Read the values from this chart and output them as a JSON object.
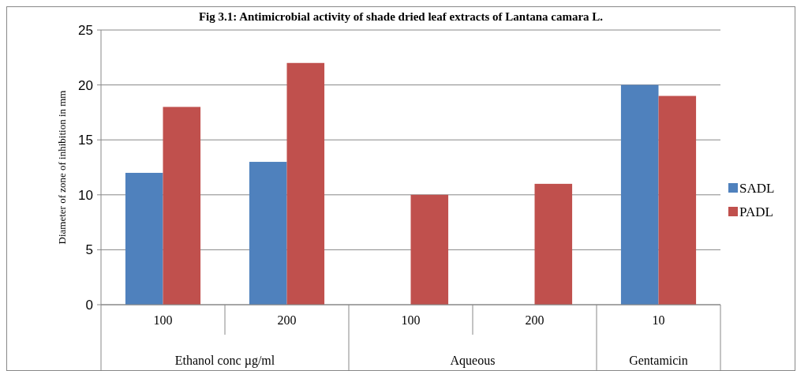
{
  "chart_data": {
    "type": "bar",
    "title": "Fig 3.1: Antimicrobial activity of shade dried leaf extracts of Lantana camara L.",
    "ylabel": "Diameter of zone of inhibition in mm",
    "categories": [
      "100",
      "200",
      "100",
      "200",
      "10"
    ],
    "series": [
      {
        "name": "SADL",
        "color": "#4f81bd",
        "values": [
          12,
          13,
          0,
          0,
          20
        ]
      },
      {
        "name": "PADL",
        "color": "#c0504d",
        "values": [
          18,
          22,
          10,
          11,
          19
        ]
      }
    ],
    "ylim": [
      0,
      25
    ],
    "yticks": [
      0,
      5,
      10,
      15,
      20,
      25
    ],
    "grid": "y",
    "legend": "right",
    "annotations": [
      "Ethanol conc µg/ml",
      "Aqueous",
      "Gentamicin"
    ]
  }
}
